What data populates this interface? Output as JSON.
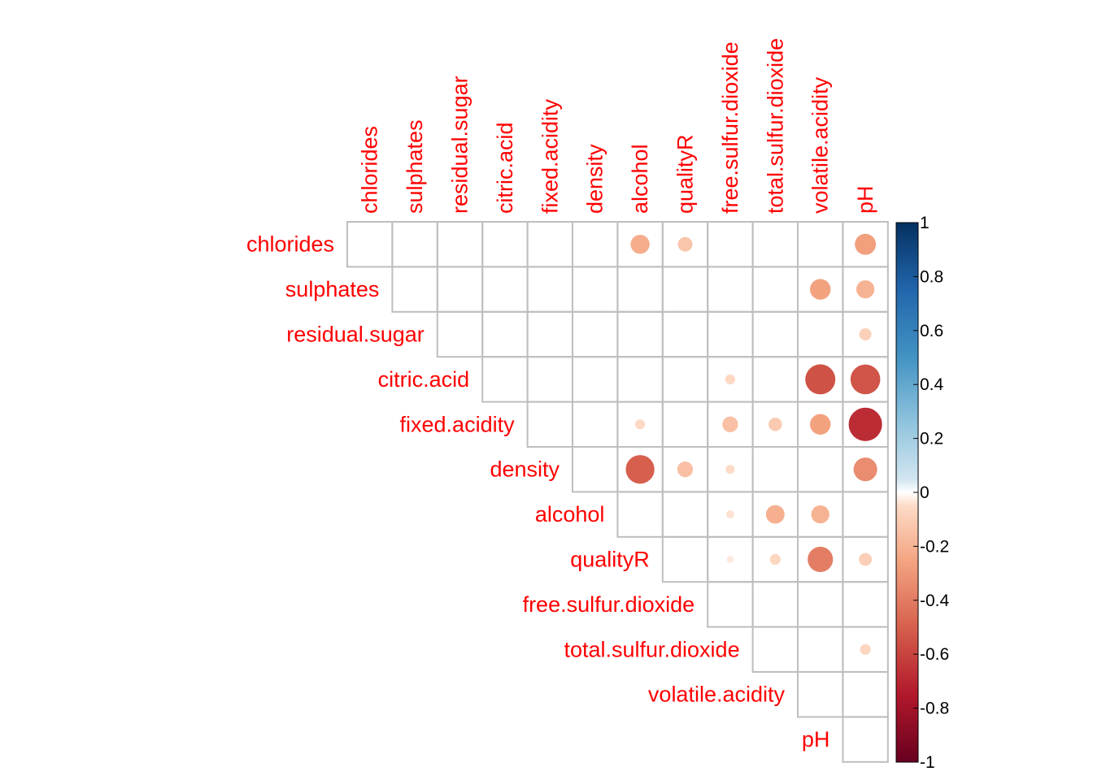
{
  "chart_data": {
    "type": "heatmap",
    "style": "corrplot-upper-circles",
    "variables": [
      "chlorides",
      "sulphates",
      "residual.sugar",
      "citric.acid",
      "fixed.acidity",
      "density",
      "alcohol",
      "qualityR",
      "free.sulfur.dioxide",
      "total.sulfur.dioxide",
      "volatile.acidity",
      "pH"
    ],
    "label_color": "#ff0000",
    "grid_color": "#bebebe",
    "colorbar": {
      "range": [
        -1,
        1
      ],
      "ticks": [
        "1",
        "0.8",
        "0.6",
        "0.4",
        "0.2",
        "0",
        "-0.2",
        "-0.4",
        "-0.6",
        "-0.8",
        "-1"
      ],
      "tick_values": [
        1,
        0.8,
        0.6,
        0.4,
        0.2,
        0,
        -0.2,
        -0.4,
        -0.6,
        -0.8,
        -1
      ],
      "gradient": [
        {
          "value": -1,
          "color": "#67001f"
        },
        {
          "value": -0.75,
          "color": "#b2182b"
        },
        {
          "value": -0.5,
          "color": "#d6604d"
        },
        {
          "value": -0.25,
          "color": "#f4a582"
        },
        {
          "value": -0.05,
          "color": "#fddbc7"
        },
        {
          "value": 0,
          "color": "#ffffff"
        },
        {
          "value": 0.05,
          "color": "#d1e5f0"
        },
        {
          "value": 0.25,
          "color": "#92c5de"
        },
        {
          "value": 0.5,
          "color": "#4393c3"
        },
        {
          "value": 0.75,
          "color": "#2166ac"
        },
        {
          "value": 1,
          "color": "#053061"
        }
      ]
    },
    "cells": [
      {
        "row": "chlorides",
        "col": "alcohol",
        "value": -0.22
      },
      {
        "row": "chlorides",
        "col": "qualityR",
        "value": -0.13
      },
      {
        "row": "chlorides",
        "col": "pH",
        "value": -0.27
      },
      {
        "row": "sulphates",
        "col": "volatile.acidity",
        "value": -0.26
      },
      {
        "row": "sulphates",
        "col": "pH",
        "value": -0.2
      },
      {
        "row": "residual.sugar",
        "col": "pH",
        "value": -0.09
      },
      {
        "row": "citric.acid",
        "col": "free.sulfur.dioxide",
        "value": -0.06
      },
      {
        "row": "citric.acid",
        "col": "volatile.acidity",
        "value": -0.55
      },
      {
        "row": "citric.acid",
        "col": "pH",
        "value": -0.54
      },
      {
        "row": "fixed.acidity",
        "col": "alcohol",
        "value": -0.06
      },
      {
        "row": "fixed.acidity",
        "col": "free.sulfur.dioxide",
        "value": -0.15
      },
      {
        "row": "fixed.acidity",
        "col": "total.sulfur.dioxide",
        "value": -0.11
      },
      {
        "row": "fixed.acidity",
        "col": "volatile.acidity",
        "value": -0.26
      },
      {
        "row": "fixed.acidity",
        "col": "pH",
        "value": -0.68
      },
      {
        "row": "density",
        "col": "alcohol",
        "value": -0.5
      },
      {
        "row": "density",
        "col": "qualityR",
        "value": -0.15
      },
      {
        "row": "density",
        "col": "free.sulfur.dioxide",
        "value": -0.05
      },
      {
        "row": "density",
        "col": "pH",
        "value": -0.34
      },
      {
        "row": "alcohol",
        "col": "free.sulfur.dioxide",
        "value": -0.04
      },
      {
        "row": "alcohol",
        "col": "total.sulfur.dioxide",
        "value": -0.21
      },
      {
        "row": "alcohol",
        "col": "volatile.acidity",
        "value": -0.2
      },
      {
        "row": "qualityR",
        "col": "free.sulfur.dioxide",
        "value": -0.03
      },
      {
        "row": "qualityR",
        "col": "total.sulfur.dioxide",
        "value": -0.07
      },
      {
        "row": "qualityR",
        "col": "volatile.acidity",
        "value": -0.39
      },
      {
        "row": "qualityR",
        "col": "pH",
        "value": -0.1
      },
      {
        "row": "total.sulfur.dioxide",
        "col": "pH",
        "value": -0.07
      }
    ]
  }
}
